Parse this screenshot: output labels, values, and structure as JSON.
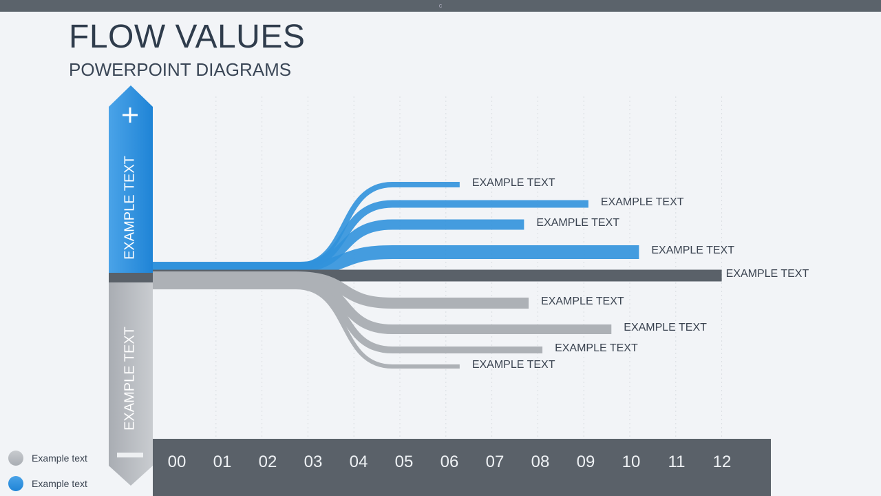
{
  "topbar": {
    "text": "c"
  },
  "title": "FLOW VALUES",
  "subtitle": "POWERPOINT DIAGRAMS",
  "colors": {
    "blue": "#2e8fd9",
    "gray": "#b4b8bd",
    "dark": "#5a6169"
  },
  "column": {
    "top_icon": "plus-icon",
    "top_label": "EXAMPLE TEXT",
    "bottom_icon": "minus-icon",
    "bottom_label": "EXAMPLE TEXT"
  },
  "chart_data": {
    "type": "flow",
    "x_ticks": [
      "00",
      "01",
      "02",
      "03",
      "04",
      "05",
      "06",
      "07",
      "08",
      "09",
      "10",
      "11",
      "12"
    ],
    "xlim": [
      0,
      12
    ],
    "grid": true,
    "flows": [
      {
        "group": "blue",
        "label": "EXAMPLE TEXT",
        "end": 6.3
      },
      {
        "group": "blue",
        "label": "EXAMPLE TEXT",
        "end": 9.1
      },
      {
        "group": "blue",
        "label": "EXAMPLE TEXT",
        "end": 7.7
      },
      {
        "group": "blue",
        "label": "EXAMPLE TEXT",
        "end": 10.2
      },
      {
        "group": "dark",
        "label": "EXAMPLE TEXT",
        "end": 12.0
      },
      {
        "group": "gray",
        "label": "EXAMPLE TEXT",
        "end": 7.8
      },
      {
        "group": "gray",
        "label": "EXAMPLE TEXT",
        "end": 9.6
      },
      {
        "group": "gray",
        "label": "EXAMPLE TEXT",
        "end": 8.1
      },
      {
        "group": "gray",
        "label": "EXAMPLE TEXT",
        "end": 6.3
      }
    ]
  },
  "legend": [
    {
      "color": "gray",
      "label": "Example text"
    },
    {
      "color": "blue",
      "label": "Example text"
    }
  ]
}
